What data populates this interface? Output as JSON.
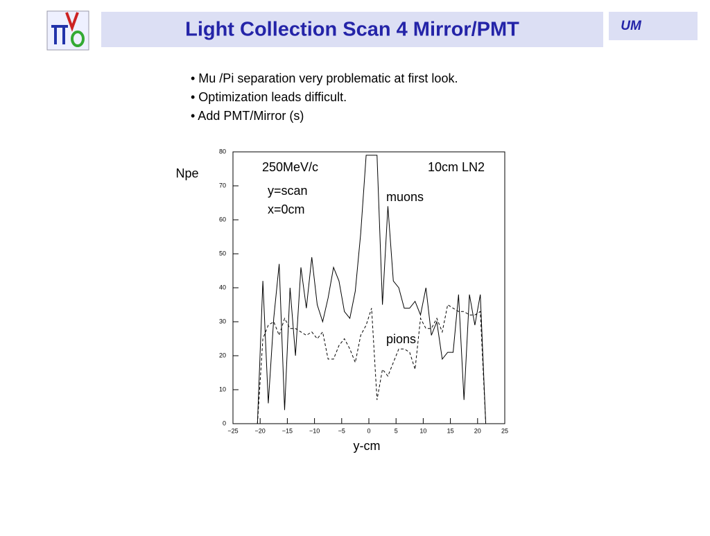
{
  "header": {
    "title": "Light Collection Scan 4 Mirror/PMT",
    "tag": "UM"
  },
  "bullets": [
    "• Mu /Pi separation very problematic at first look.",
    "• Optimization leads difficult.",
    "• Add  PMT/Mirror (s)"
  ],
  "chart_data": {
    "type": "line",
    "x_label": "y-cm",
    "y_label": "Npe",
    "annotations": [
      "250MeV/c",
      "10cm LN2",
      "y=scan",
      "x=0cm"
    ],
    "x": [
      -20.5,
      -19.5,
      -18.5,
      -17.5,
      -16.5,
      -15.5,
      -14.5,
      -13.5,
      -12.5,
      -11.5,
      -10.5,
      -9.5,
      -8.5,
      -7.5,
      -6.5,
      -5.5,
      -4.5,
      -3.5,
      -2.5,
      -1.5,
      -0.5,
      0.5,
      1.5,
      2.5,
      3.5,
      4.5,
      5.5,
      6.5,
      7.5,
      8.5,
      9.5,
      10.5,
      11.5,
      12.5,
      13.5,
      14.5,
      15.5,
      16.5,
      17.5,
      18.5,
      19.5,
      20.5,
      21.5
    ],
    "series": [
      {
        "name": "muons",
        "color": "#000000",
        "dash": "solid",
        "values": [
          0,
          42,
          6,
          31,
          47,
          4,
          40,
          20,
          46,
          34,
          49,
          35,
          30,
          37,
          46,
          42,
          33,
          31,
          39,
          56,
          79,
          79,
          79,
          35,
          64,
          42,
          40,
          34,
          34,
          36,
          32,
          40,
          26,
          30,
          19,
          21,
          21,
          38,
          7,
          38,
          29,
          38,
          0
        ]
      },
      {
        "name": "pions",
        "color": "#000000",
        "dash": "dashed",
        "values": [
          0,
          25,
          29,
          30,
          26,
          31,
          28,
          28,
          27,
          26,
          27,
          25,
          27,
          19,
          19,
          23,
          25,
          22,
          18,
          26,
          29,
          34,
          7,
          16,
          14,
          18,
          22,
          22,
          21,
          16,
          31,
          28,
          28,
          31,
          27,
          35,
          34,
          33,
          33,
          32,
          32,
          33,
          0
        ]
      }
    ],
    "xlim": [
      -25,
      25
    ],
    "xticks": [
      {
        "value": -25,
        "label": "−25"
      },
      {
        "value": -20,
        "label": "−20"
      },
      {
        "value": -15,
        "label": "−15"
      },
      {
        "value": -10,
        "label": "−10"
      },
      {
        "value": -5,
        "label": "−5"
      },
      0,
      5,
      10,
      15,
      20,
      25
    ],
    "ylim": [
      0,
      80
    ],
    "yticks": [
      0,
      10,
      20,
      30,
      40,
      50,
      60,
      70,
      80
    ]
  }
}
